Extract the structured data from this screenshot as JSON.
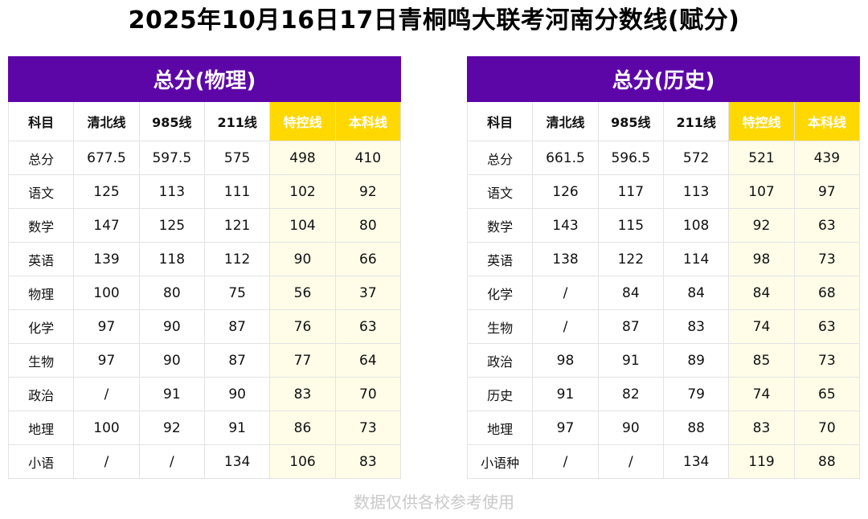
{
  "title": "2025年10月16日17日青桐鸣大联考河南分数线(赋分)",
  "columns": [
    "科目",
    "清北线",
    "985线",
    "211线",
    "特控线",
    "本科线"
  ],
  "accent_color": "#5d06a8",
  "highlight_color": "#ffd800",
  "tables": [
    {
      "heading": "总分(物理)",
      "rows": [
        [
          "总分",
          "677.5",
          "597.5",
          "575",
          "498",
          "410"
        ],
        [
          "语文",
          "125",
          "113",
          "111",
          "102",
          "92"
        ],
        [
          "数学",
          "147",
          "125",
          "121",
          "104",
          "80"
        ],
        [
          "英语",
          "139",
          "118",
          "112",
          "90",
          "66"
        ],
        [
          "物理",
          "100",
          "80",
          "75",
          "56",
          "37"
        ],
        [
          "化学",
          "97",
          "90",
          "87",
          "76",
          "63"
        ],
        [
          "生物",
          "97",
          "90",
          "87",
          "77",
          "64"
        ],
        [
          "政治",
          "/",
          "91",
          "90",
          "83",
          "70"
        ],
        [
          "地理",
          "100",
          "92",
          "91",
          "86",
          "73"
        ],
        [
          "小语",
          "/",
          "/",
          "134",
          "106",
          "83"
        ]
      ]
    },
    {
      "heading": "总分(历史)",
      "rows": [
        [
          "总分",
          "661.5",
          "596.5",
          "572",
          "521",
          "439"
        ],
        [
          "语文",
          "126",
          "117",
          "113",
          "107",
          "97"
        ],
        [
          "数学",
          "143",
          "115",
          "108",
          "92",
          "63"
        ],
        [
          "英语",
          "138",
          "122",
          "114",
          "98",
          "73"
        ],
        [
          "化学",
          "/",
          "84",
          "84",
          "84",
          "68"
        ],
        [
          "生物",
          "/",
          "87",
          "83",
          "74",
          "63"
        ],
        [
          "政治",
          "98",
          "91",
          "89",
          "85",
          "73"
        ],
        [
          "历史",
          "91",
          "82",
          "79",
          "74",
          "65"
        ],
        [
          "地理",
          "97",
          "90",
          "88",
          "83",
          "70"
        ],
        [
          "小语种",
          "/",
          "/",
          "134",
          "119",
          "88"
        ]
      ]
    }
  ],
  "footer": "数据仅供各校参考使用"
}
